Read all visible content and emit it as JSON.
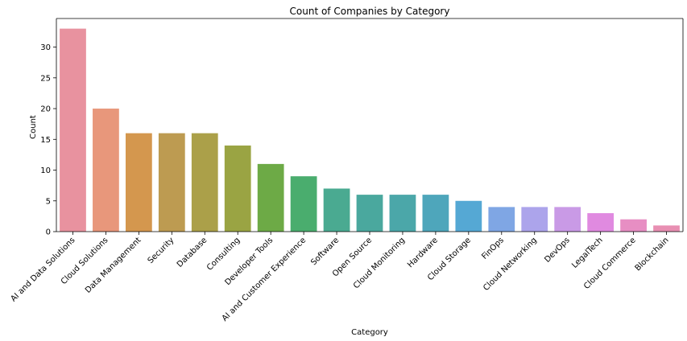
{
  "chart_data": {
    "type": "bar",
    "title": "Count of Companies by Category",
    "xlabel": "Category",
    "ylabel": "Count",
    "ylim": [
      0,
      34.65
    ],
    "yticks": [
      0,
      5,
      10,
      15,
      20,
      25,
      30
    ],
    "grid": false,
    "legend": "none",
    "categories": [
      "AI and Data Solutions",
      "Cloud Solutions",
      "Data Management",
      "Security",
      "Database",
      "Consulting",
      "Developer Tools",
      "AI and Customer Experience",
      "Software",
      "Open Source",
      "Cloud Monitoring",
      "Hardware",
      "Cloud Storage",
      "FinOps",
      "Cloud Networking",
      "DevOps",
      "LegalTech",
      "Cloud Commerce",
      "Blockchain"
    ],
    "values": [
      33,
      20,
      16,
      16,
      16,
      14,
      11,
      9,
      7,
      6,
      6,
      6,
      5,
      4,
      4,
      4,
      3,
      2,
      1
    ],
    "colors": [
      "#e8929f",
      "#e8977b",
      "#d4974e",
      "#bd9b51",
      "#aba049",
      "#9aa443",
      "#6daa46",
      "#4aad6e",
      "#4aaa91",
      "#4aa89e",
      "#4ba7a9",
      "#4ea6bb",
      "#55a8d4",
      "#7fa6e4",
      "#aca4eb",
      "#c99ae6",
      "#e08ae0",
      "#e78ec3",
      "#e88fb2"
    ]
  }
}
